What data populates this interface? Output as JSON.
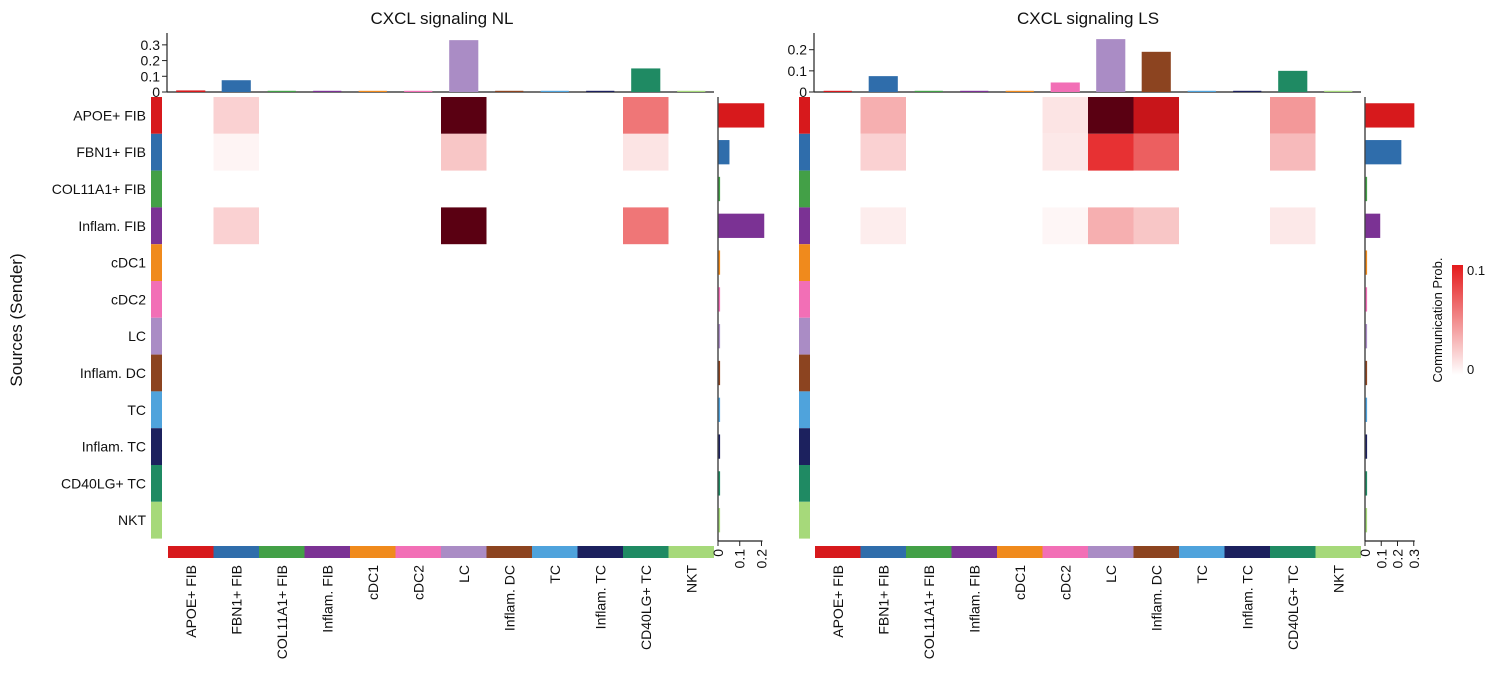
{
  "chart_data": {
    "type": "heatmap",
    "cell_types": [
      "APOE+ FIB",
      "FBN1+ FIB",
      "COL11A1+ FIB",
      "Inflam. FIB",
      "cDC1",
      "cDC2",
      "LC",
      "Inflam. DC",
      "TC",
      "Inflam. TC",
      "CD40LG+ TC",
      "NKT"
    ],
    "colors": [
      "#d7191c",
      "#2f6dab",
      "#43a047",
      "#7b3294",
      "#f08a1c",
      "#f26fb6",
      "#aa8cc5",
      "#8c4420",
      "#4fa3dc",
      "#1c215e",
      "#1f8a63",
      "#a6d97a"
    ],
    "ylabel": "Sources (Sender)",
    "legend": {
      "title": "Communication Prob.",
      "max_label": "0.1",
      "min_label": "0",
      "low_color": "#ffffff",
      "high_color": "#e41a1c",
      "max": 0.1
    },
    "panels": [
      {
        "title": "CXCL signaling  NL",
        "top_ticks": [
          "0",
          "0.1",
          "0.2",
          "0.3"
        ],
        "top_max": 0.35,
        "top_values": [
          0.01,
          0.075,
          0.005,
          0.004,
          0.003,
          0.002,
          0.33,
          0.006,
          0.002,
          0.004,
          0.15,
          0.002
        ],
        "right_ticks": [
          "0",
          "0.1",
          "0.2"
        ],
        "right_max": 0.23,
        "right_values": [
          0.21,
          0.05,
          0.002,
          0.21,
          0.002,
          0.002,
          0.002,
          0.002,
          0.002,
          0.002,
          0.002,
          0.002
        ],
        "matrix": [
          [
            0,
            0.02,
            0,
            0,
            0,
            0,
            0.15,
            0,
            0,
            0,
            0.06,
            0
          ],
          [
            0,
            0.005,
            0,
            0,
            0,
            0,
            0.025,
            0,
            0,
            0,
            0.012,
            0
          ],
          [
            0,
            0,
            0,
            0,
            0,
            0,
            0,
            0,
            0,
            0,
            0,
            0
          ],
          [
            0,
            0.02,
            0,
            0,
            0,
            0,
            0.15,
            0,
            0,
            0,
            0.06,
            0
          ],
          [
            0,
            0,
            0,
            0,
            0,
            0,
            0,
            0,
            0,
            0,
            0,
            0
          ],
          [
            0,
            0,
            0,
            0,
            0,
            0,
            0,
            0,
            0,
            0,
            0,
            0
          ],
          [
            0,
            0,
            0,
            0,
            0,
            0,
            0,
            0,
            0,
            0,
            0,
            0
          ],
          [
            0,
            0,
            0,
            0,
            0,
            0,
            0,
            0,
            0,
            0,
            0,
            0
          ],
          [
            0,
            0,
            0,
            0,
            0,
            0,
            0,
            0,
            0,
            0,
            0,
            0
          ],
          [
            0,
            0,
            0,
            0,
            0,
            0,
            0,
            0,
            0,
            0,
            0,
            0
          ],
          [
            0,
            0,
            0,
            0,
            0,
            0,
            0,
            0,
            0,
            0,
            0,
            0
          ],
          [
            0,
            0,
            0,
            0,
            0,
            0,
            0,
            0,
            0,
            0,
            0,
            0
          ]
        ]
      },
      {
        "title": "CXCL signaling  LS",
        "top_ticks": [
          "0",
          "0.1",
          "0.2"
        ],
        "top_max": 0.26,
        "top_values": [
          0.005,
          0.075,
          0.003,
          0.003,
          0.002,
          0.045,
          0.25,
          0.19,
          0.002,
          0.004,
          0.1,
          0.002
        ],
        "right_ticks": [
          "0",
          "0.1",
          "0.2",
          "0.3"
        ],
        "right_max": 0.32,
        "right_values": [
          0.3,
          0.22,
          0.002,
          0.09,
          0.002,
          0.002,
          0.002,
          0.002,
          0.002,
          0.002,
          0.002,
          0.002
        ],
        "matrix": [
          [
            0,
            0.035,
            0,
            0,
            0,
            0.012,
            0.15,
            0.11,
            0,
            0,
            0.045,
            0
          ],
          [
            0,
            0.02,
            0,
            0,
            0,
            0.01,
            0.09,
            0.07,
            0,
            0,
            0.03,
            0
          ],
          [
            0,
            0,
            0,
            0,
            0,
            0,
            0,
            0,
            0,
            0,
            0,
            0
          ],
          [
            0,
            0.008,
            0,
            0,
            0,
            0.004,
            0.035,
            0.025,
            0,
            0,
            0.01,
            0
          ],
          [
            0,
            0,
            0,
            0,
            0,
            0,
            0,
            0,
            0,
            0,
            0,
            0
          ],
          [
            0,
            0,
            0,
            0,
            0,
            0,
            0,
            0,
            0,
            0,
            0,
            0
          ],
          [
            0,
            0,
            0,
            0,
            0,
            0,
            0,
            0,
            0,
            0,
            0,
            0
          ],
          [
            0,
            0,
            0,
            0,
            0,
            0,
            0,
            0,
            0,
            0,
            0,
            0
          ],
          [
            0,
            0,
            0,
            0,
            0,
            0,
            0,
            0,
            0,
            0,
            0,
            0
          ],
          [
            0,
            0,
            0,
            0,
            0,
            0,
            0,
            0,
            0,
            0,
            0,
            0
          ],
          [
            0,
            0,
            0,
            0,
            0,
            0,
            0,
            0,
            0,
            0,
            0,
            0
          ],
          [
            0,
            0,
            0,
            0,
            0,
            0,
            0,
            0,
            0,
            0,
            0,
            0
          ]
        ]
      }
    ]
  }
}
